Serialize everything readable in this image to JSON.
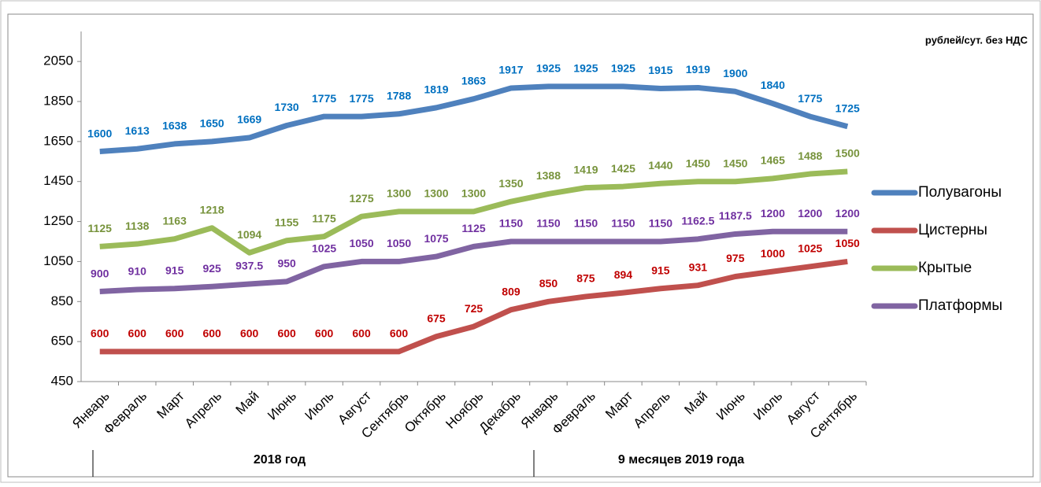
{
  "chart_data": {
    "type": "line",
    "unit_label": "рублей/сут. без НДС",
    "categories": [
      "Январь",
      "Февраль",
      "Март",
      "Апрель",
      "Май",
      "Июнь",
      "Июль",
      "Август",
      "Сентябрь",
      "Октябрь",
      "Ноябрь",
      "Декабрь",
      "Январь",
      "Февраль",
      "Март",
      "Апрель",
      "Май",
      "Июнь",
      "Июль",
      "Август",
      "Сентябрь"
    ],
    "groups": [
      "2018 год",
      "9 месяцев 2019 года"
    ],
    "series": [
      {
        "name": "Полувагоны",
        "color": "#4f81bd",
        "label_color": "#0070c0",
        "values": [
          1600,
          1613,
          1638,
          1650,
          1669,
          1730,
          1775,
          1775,
          1788,
          1819,
          1863,
          1917,
          1925,
          1925,
          1925,
          1915,
          1919,
          1900,
          1840,
          1775,
          1725
        ]
      },
      {
        "name": "Цистерны",
        "color": "#c0504d",
        "label_color": "#c00000",
        "values": [
          600,
          600,
          600,
          600,
          600,
          600,
          600,
          600,
          600,
          675,
          725,
          809,
          850,
          875,
          894,
          915,
          931,
          975,
          1000,
          1025,
          1050
        ]
      },
      {
        "name": "Крытые",
        "color": "#9bbb59",
        "label_color": "#77933c",
        "values": [
          1125,
          1138,
          1163,
          1218,
          1094,
          1155,
          1175,
          1275,
          1300,
          1300,
          1300,
          1350,
          1388,
          1419,
          1425,
          1440,
          1450,
          1450,
          1465,
          1488,
          1500
        ]
      },
      {
        "name": "Платформы",
        "color": "#8064a2",
        "label_color": "#7030a0",
        "values": [
          900,
          910,
          915,
          925,
          937.5,
          950,
          1025,
          1050,
          1050,
          1075,
          1125,
          1150,
          1150,
          1150,
          1150,
          1150,
          1162.5,
          1187.5,
          1200,
          1200,
          1200
        ]
      }
    ],
    "ylim": [
      450,
      2200
    ],
    "yticks": [
      450,
      650,
      850,
      1050,
      1250,
      1450,
      1650,
      1850,
      2050
    ],
    "legend": "right"
  }
}
